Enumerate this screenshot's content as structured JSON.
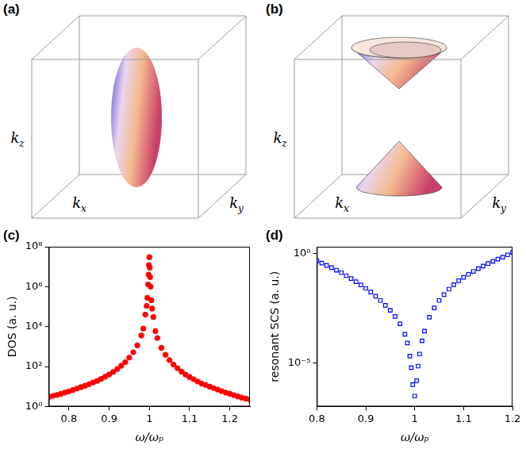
{
  "panel_labels": [
    "(a)",
    "(b)",
    "(c)",
    "(d)"
  ],
  "diagrams": [
    {
      "shape": "ellipsoid",
      "axes": {
        "x": {
          "base": "k",
          "sub": "x"
        },
        "y": {
          "base": "k",
          "sub": "y"
        },
        "z": {
          "base": "k",
          "sub": "z"
        }
      }
    },
    {
      "shape": "cones",
      "axes": {
        "x": {
          "base": "k",
          "sub": "x"
        },
        "y": {
          "base": "k",
          "sub": "y"
        },
        "z": {
          "base": "k",
          "sub": "z"
        }
      }
    }
  ],
  "chart_data": [
    {
      "type": "scatter",
      "x_label": "ω/ωₚ",
      "y_label": "DOS (a. u.)",
      "log": "y",
      "grid": false,
      "color": "#ff0000",
      "marker": "circle",
      "xlim": [
        0.75,
        1.25
      ],
      "xticks": [
        0.8,
        0.9,
        1,
        1.1,
        1.2
      ],
      "ylim": [
        1,
        100000000
      ],
      "yticks": [
        {
          "value": 1,
          "label": "10⁰"
        },
        {
          "value": 100,
          "label": "10²"
        },
        {
          "value": 10000,
          "label": "10⁴"
        },
        {
          "value": 1000000,
          "label": "10⁶"
        },
        {
          "value": 100000000,
          "label": "10⁸"
        }
      ],
      "x": [
        0.75,
        0.76,
        0.77,
        0.78,
        0.79,
        0.8,
        0.81,
        0.82,
        0.83,
        0.84,
        0.85,
        0.86,
        0.87,
        0.88,
        0.89,
        0.9,
        0.91,
        0.92,
        0.93,
        0.94,
        0.95,
        0.96,
        0.97,
        0.98,
        0.985,
        0.99,
        0.993,
        0.995,
        0.997,
        0.998,
        0.999,
        1.0,
        1.001,
        1.002,
        1.003,
        1.005,
        1.007,
        1.01,
        1.015,
        1.02,
        1.03,
        1.04,
        1.05,
        1.06,
        1.07,
        1.08,
        1.09,
        1.1,
        1.11,
        1.12,
        1.13,
        1.14,
        1.15,
        1.16,
        1.17,
        1.18,
        1.19,
        1.2,
        1.21,
        1.22,
        1.23,
        1.24,
        1.25
      ],
      "values": [
        3.0,
        3.4,
        3.8,
        4.3,
        5.0,
        5.7,
        6.7,
        7.9,
        9.4,
        11,
        13,
        16,
        19,
        24,
        31,
        40,
        54,
        75,
        109,
        166,
        278,
        520,
        1160,
        3600,
        8000,
        40000,
        110000,
        280000,
        1300000,
        4000000,
        12000000,
        30000000,
        9000000,
        3000000,
        1000000,
        210000,
        80000,
        30000,
        6000,
        2700,
        870,
        390,
        210,
        125,
        82,
        56,
        40,
        30,
        23,
        18,
        14,
        12,
        9.8,
        8.3,
        7.0,
        5.9,
        5.0,
        4.3,
        3.7,
        3.2,
        2.8,
        2.5,
        2.2
      ]
    },
    {
      "type": "scatter",
      "x_label": "ω/ωₚ",
      "y_label": "resonant SCS (a. u.)",
      "log": "y",
      "grid": false,
      "color": "#0000ff",
      "marker": "square",
      "xlim": [
        0.8,
        1.2
      ],
      "xticks": [
        0.8,
        0.9,
        1,
        1.1,
        1.2
      ],
      "ylim": [
        1e-07,
        2
      ],
      "yticks": [
        {
          "value": 1e-05,
          "label": "10⁻⁵"
        },
        {
          "value": 1,
          "label": "10⁰"
        }
      ],
      "x": [
        0.8,
        0.81,
        0.82,
        0.83,
        0.84,
        0.85,
        0.86,
        0.87,
        0.88,
        0.89,
        0.9,
        0.91,
        0.92,
        0.93,
        0.94,
        0.95,
        0.96,
        0.97,
        0.98,
        0.985,
        0.99,
        0.993,
        0.996,
        1.0,
        1.004,
        1.007,
        1.01,
        1.015,
        1.02,
        1.03,
        1.04,
        1.05,
        1.06,
        1.07,
        1.08,
        1.09,
        1.1,
        1.11,
        1.12,
        1.13,
        1.14,
        1.15,
        1.16,
        1.17,
        1.18,
        1.19,
        1.2
      ],
      "values": [
        0.45,
        0.36,
        0.28,
        0.22,
        0.17,
        0.13,
        0.095,
        0.07,
        0.05,
        0.036,
        0.025,
        0.017,
        0.011,
        0.007,
        0.0042,
        0.0025,
        0.0013,
        0.0006,
        0.0002,
        8e-05,
        2e-05,
        6e-06,
        1e-06,
        3e-07,
        1.5e-06,
        7e-06,
        2.5e-05,
        0.0001,
        0.00028,
        0.0012,
        0.0032,
        0.007,
        0.013,
        0.023,
        0.037,
        0.056,
        0.08,
        0.11,
        0.15,
        0.2,
        0.26,
        0.34,
        0.43,
        0.54,
        0.67,
        0.85,
        1.1
      ]
    }
  ]
}
